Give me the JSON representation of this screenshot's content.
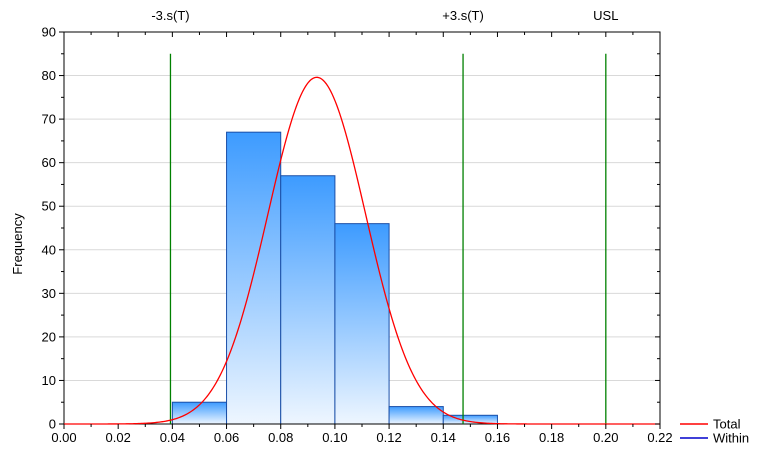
{
  "chart_data": {
    "type": "bar",
    "title": "",
    "xlabel": "",
    "ylabel": "Frequency",
    "xlim": [
      0.0,
      0.22
    ],
    "ylim": [
      0,
      90
    ],
    "x_ticks": [
      "0.00",
      "0.02",
      "0.04",
      "0.06",
      "0.08",
      "0.10",
      "0.12",
      "0.14",
      "0.16",
      "0.18",
      "0.20",
      "0.22"
    ],
    "y_ticks": [
      "0",
      "10",
      "20",
      "30",
      "40",
      "50",
      "60",
      "70",
      "80",
      "90"
    ],
    "grid": "horizontal",
    "bins": [
      {
        "start": 0.04,
        "end": 0.06,
        "value": 5
      },
      {
        "start": 0.06,
        "end": 0.08,
        "value": 67
      },
      {
        "start": 0.08,
        "end": 0.1,
        "value": 57
      },
      {
        "start": 0.1,
        "end": 0.12,
        "value": 46
      },
      {
        "start": 0.12,
        "end": 0.14,
        "value": 4
      },
      {
        "start": 0.14,
        "end": 0.16,
        "value": 2
      }
    ],
    "reference_lines": [
      {
        "label": "-3.s(T)",
        "x": 0.0393,
        "color": "#008000"
      },
      {
        "label": "+3.s(T)",
        "x": 0.1473,
        "color": "#008000"
      },
      {
        "label": "USL",
        "x": 0.2,
        "color": "#008000"
      }
    ],
    "reference_line_top": 85,
    "series": [
      {
        "name": "Total",
        "type": "normal-curve",
        "mean": 0.0933,
        "sd": 0.018,
        "peak": 79.6,
        "color": "#ff0000"
      },
      {
        "name": "Within",
        "type": "normal-curve",
        "color": "#0000cc"
      }
    ],
    "legend_position": "bottom-right",
    "bar_color_top": "#3d9bff",
    "bar_color_bottom": "#eef6ff",
    "bar_stroke": "#1a4fa8",
    "grid_color": "#d9d9d9"
  }
}
